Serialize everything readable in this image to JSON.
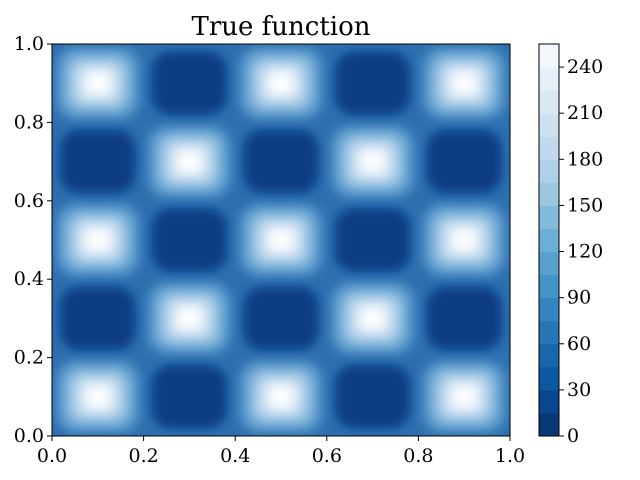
{
  "chart_data": {
    "type": "heatmap",
    "title": "True function",
    "xlabel": "",
    "ylabel": "",
    "xlim": [
      0,
      1
    ],
    "ylim": [
      0,
      1
    ],
    "x_ticks": [
      "0.0",
      "0.2",
      "0.4",
      "0.6",
      "0.8",
      "1.0"
    ],
    "y_ticks": [
      "0.0",
      "0.2",
      "0.4",
      "0.6",
      "0.8",
      "1.0"
    ],
    "colormap": "Blues_r (filled contours)",
    "colorbar": {
      "min": 0,
      "max": 255,
      "ticks": [
        "0",
        "30",
        "60",
        "90",
        "120",
        "150",
        "180",
        "210",
        "240"
      ],
      "levels": [
        0,
        15,
        30,
        45,
        60,
        75,
        90,
        105,
        120,
        135,
        150,
        165,
        180,
        195,
        210,
        225,
        240,
        255
      ]
    },
    "peaks": [
      {
        "x": 0.1,
        "y": 0.1,
        "value": 255
      },
      {
        "x": 0.5,
        "y": 0.1,
        "value": 255
      },
      {
        "x": 0.9,
        "y": 0.1,
        "value": 255
      },
      {
        "x": 0.3,
        "y": 0.3,
        "value": 255
      },
      {
        "x": 0.7,
        "y": 0.3,
        "value": 255
      },
      {
        "x": 0.1,
        "y": 0.5,
        "value": 255
      },
      {
        "x": 0.5,
        "y": 0.5,
        "value": 255
      },
      {
        "x": 0.9,
        "y": 0.5,
        "value": 255
      },
      {
        "x": 0.3,
        "y": 0.7,
        "value": 255
      },
      {
        "x": 0.7,
        "y": 0.7,
        "value": 255
      },
      {
        "x": 0.1,
        "y": 0.9,
        "value": 255
      },
      {
        "x": 0.5,
        "y": 0.9,
        "value": 255
      },
      {
        "x": 0.9,
        "y": 0.9,
        "value": 255
      }
    ],
    "troughs": [
      {
        "x": 0.3,
        "y": 0.1,
        "value": 0
      },
      {
        "x": 0.7,
        "y": 0.1,
        "value": 0
      },
      {
        "x": 0.1,
        "y": 0.3,
        "value": 0
      },
      {
        "x": 0.5,
        "y": 0.3,
        "value": 0
      },
      {
        "x": 0.9,
        "y": 0.3,
        "value": 0
      },
      {
        "x": 0.3,
        "y": 0.5,
        "value": 0
      },
      {
        "x": 0.7,
        "y": 0.5,
        "value": 0
      },
      {
        "x": 0.1,
        "y": 0.7,
        "value": 0
      },
      {
        "x": 0.5,
        "y": 0.7,
        "value": 0
      },
      {
        "x": 0.9,
        "y": 0.7,
        "value": 0
      },
      {
        "x": 0.3,
        "y": 0.9,
        "value": 0
      },
      {
        "x": 0.7,
        "y": 0.9,
        "value": 0
      }
    ]
  }
}
